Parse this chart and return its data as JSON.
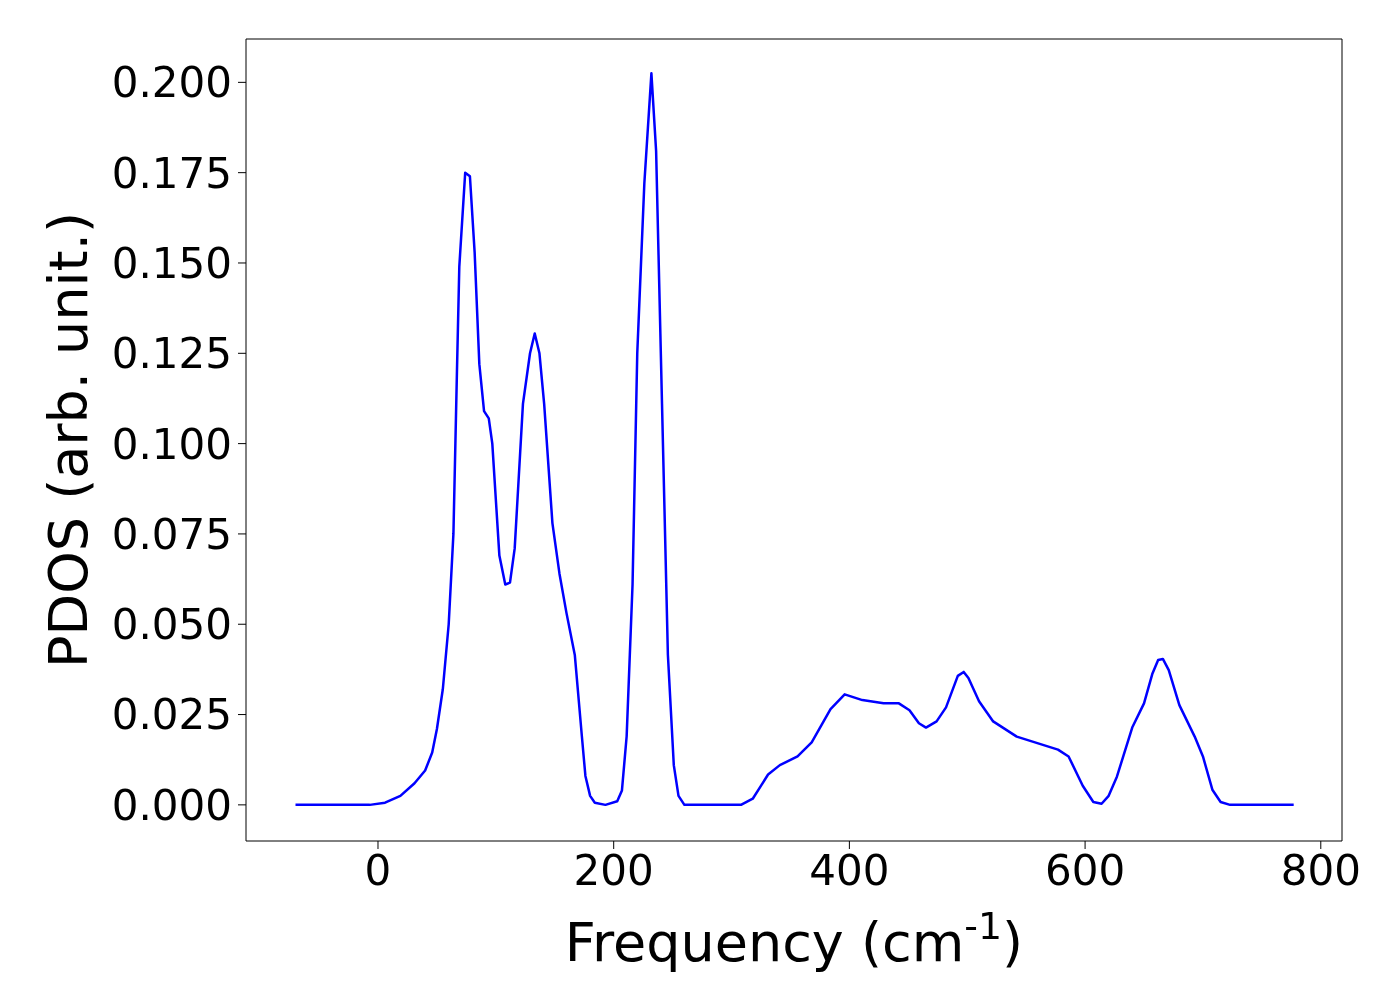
{
  "chart_data": {
    "type": "line",
    "xlabel": "Frequency (cm$^{-1}$)",
    "ylabel": "PDOS (arb. unit.)",
    "x": [
      -70,
      -7,
      6,
      19,
      31,
      40,
      46,
      50,
      55,
      60,
      64,
      67,
      69,
      74,
      78,
      82,
      86,
      90,
      94,
      97,
      103,
      108,
      112,
      116,
      123,
      129,
      133,
      137,
      141,
      148,
      154,
      160,
      167,
      173,
      176,
      180,
      184,
      193,
      203,
      207,
      211,
      216,
      220,
      226,
      232,
      236,
      241,
      246,
      251,
      255,
      260,
      308,
      318,
      331,
      341,
      356,
      368,
      384,
      396,
      411,
      429,
      442,
      451,
      459,
      465,
      474,
      482,
      492,
      497,
      501,
      510,
      522,
      542,
      577,
      586,
      598,
      607,
      614,
      620,
      627,
      640,
      650,
      657,
      662,
      666,
      671,
      680,
      693,
      700,
      708,
      715,
      723,
      777
    ],
    "series": [
      {
        "color": "#0000ff",
        "values": [
          0,
          0,
          0.0006,
          0.0025,
          0.006,
          0.0095,
          0.0145,
          0.021,
          0.032,
          0.05,
          0.075,
          0.12,
          0.149,
          0.175,
          0.174,
          0.153,
          0.122,
          0.109,
          0.107,
          0.1,
          0.069,
          0.061,
          0.0615,
          0.071,
          0.111,
          0.125,
          0.1305,
          0.125,
          0.111,
          0.078,
          0.064,
          0.053,
          0.0415,
          0.019,
          0.008,
          0.0025,
          0.0006,
          0,
          0.001,
          0.004,
          0.019,
          0.061,
          0.125,
          0.172,
          0.2025,
          0.181,
          0.111,
          0.0415,
          0.011,
          0.0025,
          0,
          0,
          0.0017,
          0.0084,
          0.011,
          0.0134,
          0.0173,
          0.0265,
          0.0306,
          0.029,
          0.0281,
          0.0281,
          0.0262,
          0.0226,
          0.0214,
          0.0231,
          0.027,
          0.0357,
          0.0368,
          0.0351,
          0.0287,
          0.0231,
          0.0189,
          0.0153,
          0.0134,
          0.0053,
          0.0008,
          0.0003,
          0.0025,
          0.0078,
          0.0214,
          0.0281,
          0.0362,
          0.0401,
          0.0404,
          0.0373,
          0.0276,
          0.0189,
          0.0134,
          0.0042,
          0.0008,
          0,
          0
        ]
      }
    ],
    "xlim": [
      -112,
      818
    ],
    "xticks": [
      0,
      200,
      400,
      600,
      800
    ],
    "ylim": [
      -0.01,
      0.212
    ],
    "yticks": [
      {
        "value": 0,
        "label": "0.000"
      },
      {
        "value": 0.025,
        "label": "0.025"
      },
      {
        "value": 0.05,
        "label": "0.050"
      },
      {
        "value": 0.075,
        "label": "0.075"
      },
      {
        "value": 0.1,
        "label": "0.100"
      },
      {
        "value": 0.125,
        "label": "0.125"
      },
      {
        "value": 0.15,
        "label": "0.150"
      },
      {
        "value": 0.175,
        "label": "0.175"
      },
      {
        "value": 0.2,
        "label": "0.200"
      }
    ],
    "grid": false,
    "legend": false,
    "marker": "none",
    "line_style": "solid"
  }
}
